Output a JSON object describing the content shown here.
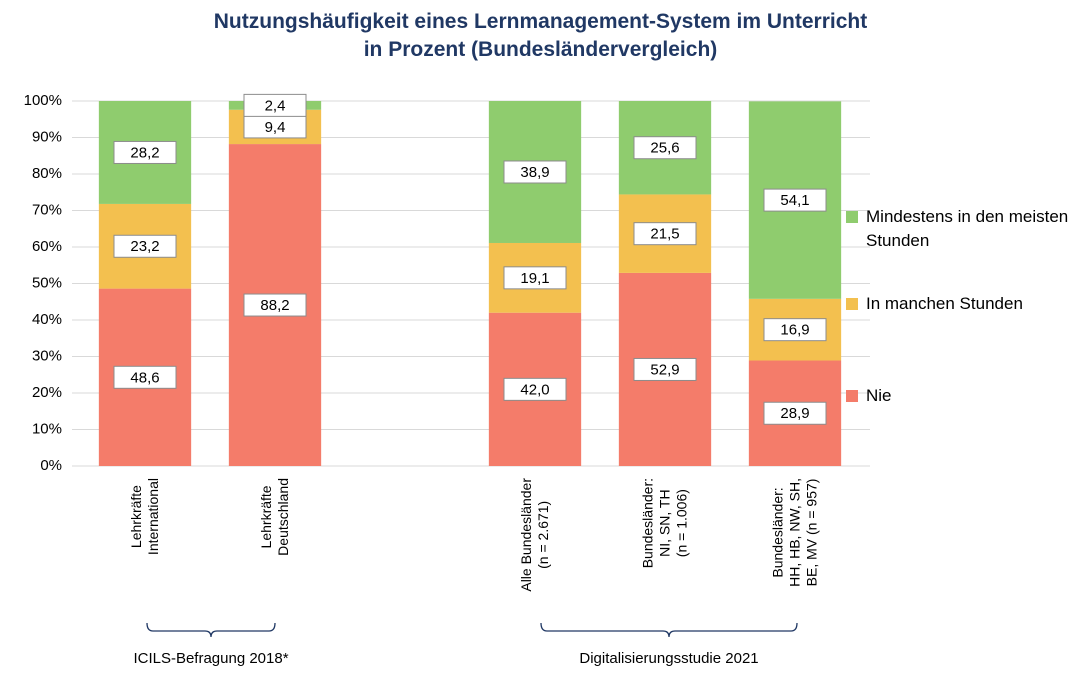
{
  "chart_data": {
    "type": "stacked_bar",
    "title": "Nutzungshäufigkeit eines Lernmanagement-System im Unterricht\nin Prozent (Bundesländervergleich)",
    "categories": [
      "Lehrkräfte\nInternational",
      "Lehrkräfte\nDeutschland",
      null,
      "Alle Bundesländer\n(n = 2.671)",
      "Bundesländer:\nNI, SN, TH\n(n = 1.006)",
      "Bundesländer:\nHH, HB, NW, SH,\nBE, MV (n = 957)"
    ],
    "series": [
      {
        "name": "Nie",
        "color": "#f47c6a",
        "values": [
          48.6,
          88.2,
          null,
          42.0,
          52.9,
          28.9
        ],
        "value_labels": [
          "48,6",
          "88,2",
          null,
          "42,0",
          "52,9",
          "28,9"
        ]
      },
      {
        "name": "In manchen Stunden",
        "color": "#f3c04f",
        "values": [
          23.2,
          9.4,
          null,
          19.1,
          21.5,
          16.9
        ],
        "value_labels": [
          "23,2",
          "9,4",
          null,
          "19,1",
          "21,5",
          "16,9"
        ]
      },
      {
        "name": "Mindestens in den meisten Stunden",
        "color": "#8fcc6e",
        "values": [
          28.2,
          2.4,
          null,
          38.9,
          25.6,
          54.1
        ],
        "value_labels": [
          "28,2",
          "2,4",
          null,
          "38,9",
          "25,6",
          "54,1"
        ]
      }
    ],
    "ylim": [
      0,
      100
    ],
    "yticks": [
      {
        "value": 0,
        "label": "0%"
      },
      {
        "value": 10,
        "label": "10%"
      },
      {
        "value": 20,
        "label": "20%"
      },
      {
        "value": 30,
        "label": "30%"
      },
      {
        "value": 40,
        "label": "40%"
      },
      {
        "value": 50,
        "label": "50%"
      },
      {
        "value": 60,
        "label": "60%"
      },
      {
        "value": 70,
        "label": "70%"
      },
      {
        "value": 80,
        "label": "80%"
      },
      {
        "value": 90,
        "label": "90%"
      },
      {
        "value": 100,
        "label": "100%"
      }
    ],
    "grid": true,
    "legend": "right",
    "annotations": [
      "ICILS-Befragung 2018*",
      "Digitalisierungsstudie 2021"
    ]
  }
}
